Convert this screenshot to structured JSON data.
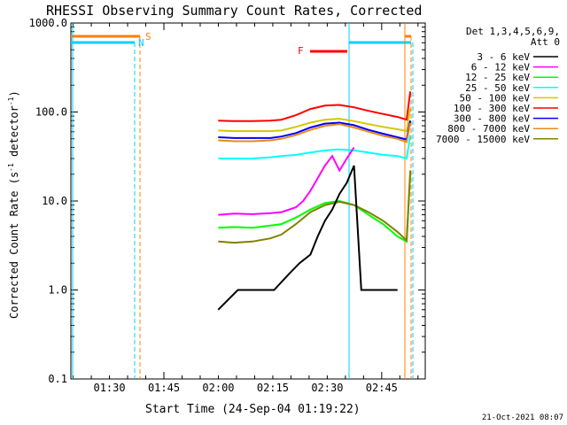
{
  "chart_data": {
    "type": "line",
    "title": "RHESSI Observing Summary Count Rates, Corrected",
    "xlabel": "Start Time (24-Sep-04 01:19:22)",
    "ylabel_main": "Corrected Count Rate (s",
    "ylabel_sup": "-1",
    "ylabel_mid": " detector",
    "ylabel_sup2": "-1",
    "ylabel_end": ")",
    "yscale": "log",
    "xlim": [
      "01:19:22",
      "02:57:00"
    ],
    "ylim": [
      0.1,
      1000.0
    ],
    "ytick_labels": [
      "1000.0",
      "100.0",
      "10.0",
      "1.0",
      "0.1"
    ],
    "ytick_values": [
      1000,
      100,
      10,
      1,
      0.1
    ],
    "xtick_labels": [
      "01:30",
      "01:45",
      "02:00",
      "02:15",
      "02:30",
      "02:45"
    ],
    "xtick_values": [
      10.63,
      25.63,
      40.63,
      55.63,
      70.63,
      85.63
    ],
    "legend": {
      "header1": "Det 1,3,4,5,6,9,",
      "header2": "Att 0",
      "entries": [
        {
          "label": "3 - 6 keV",
          "color": "#000000"
        },
        {
          "label": "6 - 12 keV",
          "color": "#ff00ff"
        },
        {
          "label": "12 - 25 keV",
          "color": "#00ff00"
        },
        {
          "label": "25 - 50 keV",
          "color": "#00ffff"
        },
        {
          "label": "50 - 100 keV",
          "color": "#d4c800"
        },
        {
          "label": "100 - 300 keV",
          "color": "#ff0000"
        },
        {
          "label": "300 - 800 keV",
          "color": "#0000ff"
        },
        {
          "label": "800 - 7000 keV",
          "color": "#e88a1c"
        },
        {
          "label": "7000 - 15000 keV",
          "color": "#808000"
        }
      ]
    },
    "flags": {
      "saa_label": "S",
      "night_label": "N",
      "flare_label": "F"
    },
    "series": [
      {
        "name": "100 - 300 keV",
        "color": "#ff0000",
        "x": [
          40.6,
          45,
          50,
          55,
          58,
          62,
          66,
          70,
          74,
          78,
          82,
          86,
          90,
          92.5,
          93.5
        ],
        "y": [
          80,
          79,
          79,
          80,
          82,
          92,
          108,
          118,
          120,
          113,
          103,
          95,
          88,
          82,
          170
        ]
      },
      {
        "name": "50 - 100 keV",
        "color": "#d4c800",
        "x": [
          40.6,
          45,
          50,
          55,
          58,
          62,
          66,
          70,
          74,
          78,
          82,
          86,
          90,
          92.5,
          93.5
        ],
        "y": [
          62,
          61,
          61,
          61,
          62,
          68,
          76,
          82,
          84,
          79,
          73,
          68,
          64,
          61,
          110
        ]
      },
      {
        "name": "300 - 800 keV",
        "color": "#0000ff",
        "x": [
          40.6,
          45,
          50,
          55,
          58,
          62,
          66,
          70,
          74,
          78,
          82,
          86,
          90,
          92.5,
          93.5
        ],
        "y": [
          52,
          51,
          51,
          51,
          53,
          58,
          67,
          74,
          76,
          71,
          63,
          57,
          52,
          49,
          80
        ]
      },
      {
        "name": "800 - 7000 keV",
        "color": "#e88a1c",
        "x": [
          40.6,
          45,
          50,
          55,
          58,
          62,
          66,
          70,
          74,
          78,
          82,
          86,
          90,
          92.5,
          93.5
        ],
        "y": [
          48,
          47,
          47,
          48,
          50,
          55,
          63,
          70,
          73,
          67,
          60,
          54,
          50,
          46,
          75
        ]
      },
      {
        "name": "25 - 50 keV",
        "color": "#00ffff",
        "x": [
          40.6,
          45,
          50,
          55,
          58,
          62,
          66,
          70,
          74,
          78,
          82,
          86,
          90,
          92.5,
          93.5
        ],
        "y": [
          30,
          30,
          30,
          31,
          32,
          33,
          35,
          37,
          38,
          37,
          35,
          33,
          32,
          30,
          55
        ]
      },
      {
        "name": "6 - 12 keV",
        "color": "#ff00ff",
        "x": [
          40.6,
          45,
          50,
          55,
          58,
          62,
          64,
          66,
          68,
          70,
          72,
          74,
          76,
          78
        ],
        "y": [
          7,
          7.2,
          7.1,
          7.3,
          7.5,
          8.5,
          10,
          13,
          18,
          25,
          32,
          22,
          30,
          40
        ]
      },
      {
        "name": "12 - 25 keV",
        "color": "#00ff00",
        "x": [
          40.6,
          45,
          50,
          55,
          58,
          62,
          66,
          70,
          74,
          78,
          82,
          86,
          90,
          92.5,
          93.5
        ],
        "y": [
          5,
          5.1,
          5,
          5.3,
          5.5,
          6.5,
          8,
          9.5,
          10,
          9,
          7,
          5.5,
          4,
          3.5,
          20
        ]
      },
      {
        "name": "7000 - 15000 keV",
        "color": "#808000",
        "x": [
          40.6,
          45,
          50,
          55,
          58,
          62,
          66,
          70,
          74,
          78,
          82,
          86,
          90,
          92.5,
          93.5
        ],
        "y": [
          3.5,
          3.4,
          3.5,
          3.8,
          4.2,
          5.5,
          7.5,
          9,
          9.8,
          9,
          7.5,
          6,
          4.5,
          3.6,
          22
        ]
      },
      {
        "name": "3 - 6 keV",
        "color": "#000000",
        "x": [
          40.6,
          46,
          52,
          56,
          60,
          63,
          66,
          68,
          70,
          72,
          74,
          76,
          78,
          80,
          82,
          86,
          90
        ],
        "y": [
          0.6,
          1,
          1,
          1,
          1.5,
          2,
          2.5,
          4,
          6,
          8,
          12,
          16,
          25,
          1,
          1,
          1,
          1
        ]
      }
    ]
  },
  "footer_date": "21-Oct-2021 08:07"
}
